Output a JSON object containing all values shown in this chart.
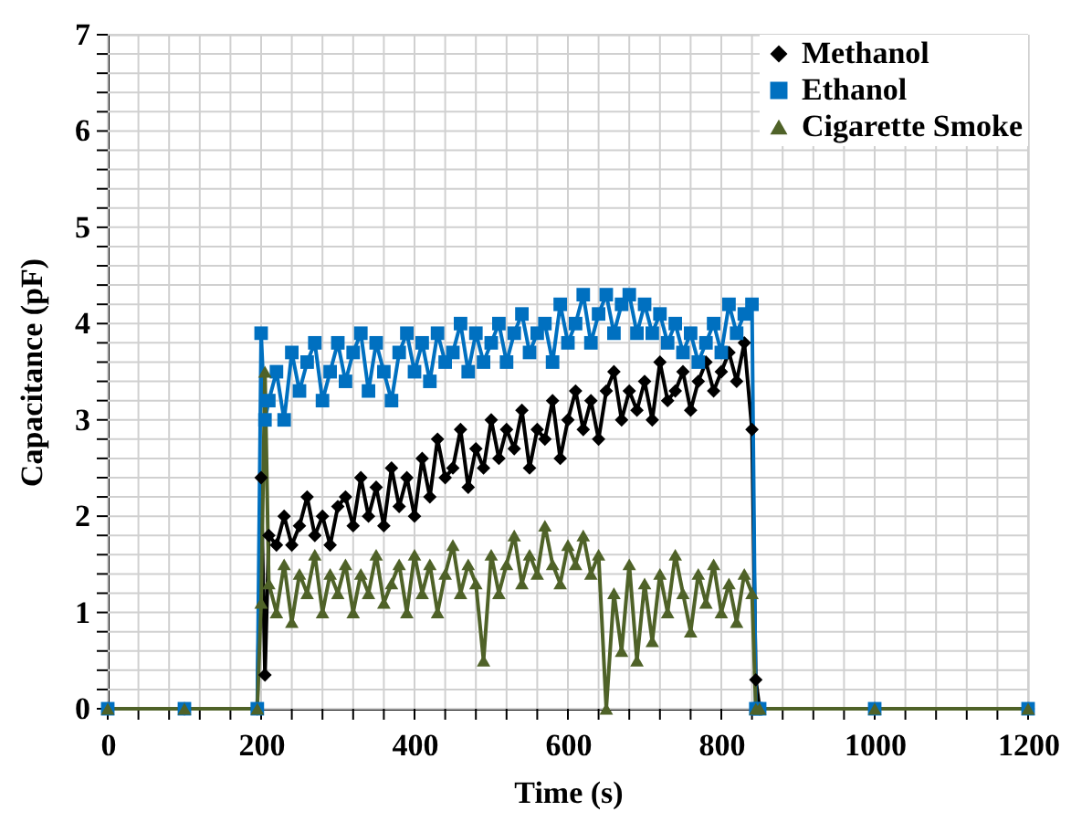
{
  "chart_data": {
    "type": "line",
    "xlabel": "Time (s)",
    "ylabel": "Capacitance (pF)",
    "x": [
      0,
      100,
      195,
      200,
      205,
      210,
      220,
      230,
      240,
      250,
      260,
      270,
      280,
      290,
      300,
      310,
      320,
      330,
      340,
      350,
      360,
      370,
      380,
      390,
      400,
      410,
      420,
      430,
      440,
      450,
      460,
      470,
      480,
      490,
      500,
      510,
      520,
      530,
      540,
      550,
      560,
      570,
      580,
      590,
      600,
      610,
      620,
      630,
      640,
      650,
      660,
      670,
      680,
      690,
      700,
      710,
      720,
      730,
      740,
      750,
      760,
      770,
      780,
      790,
      800,
      810,
      820,
      830,
      840,
      845,
      850,
      1000,
      1200
    ],
    "series": [
      {
        "name": "Methanol",
        "color": "#000000",
        "marker": "diamond",
        "values": [
          0,
          0,
          0,
          2.4,
          0.35,
          1.8,
          1.7,
          2.0,
          1.7,
          1.9,
          2.2,
          1.8,
          2.0,
          1.7,
          2.1,
          2.2,
          1.9,
          2.4,
          2.0,
          2.3,
          1.9,
          2.5,
          2.1,
          2.4,
          2.0,
          2.6,
          2.2,
          2.8,
          2.4,
          2.5,
          2.9,
          2.3,
          2.7,
          2.5,
          3.0,
          2.6,
          2.9,
          2.7,
          3.1,
          2.5,
          2.9,
          2.8,
          3.2,
          2.6,
          3.0,
          3.3,
          2.9,
          3.2,
          2.8,
          3.3,
          3.5,
          3.0,
          3.3,
          3.1,
          3.4,
          3.0,
          3.6,
          3.2,
          3.3,
          3.5,
          3.1,
          3.4,
          3.6,
          3.3,
          3.5,
          3.7,
          3.4,
          3.8,
          2.9,
          0.3,
          0,
          0,
          0
        ]
      },
      {
        "name": "Ethanol",
        "color": "#0070c0",
        "marker": "square",
        "values": [
          0,
          0,
          0,
          3.9,
          3.0,
          3.2,
          3.5,
          3.0,
          3.7,
          3.3,
          3.6,
          3.8,
          3.2,
          3.5,
          3.8,
          3.4,
          3.7,
          3.9,
          3.3,
          3.8,
          3.5,
          3.2,
          3.7,
          3.9,
          3.5,
          3.8,
          3.4,
          3.9,
          3.6,
          3.7,
          4.0,
          3.5,
          3.9,
          3.6,
          3.8,
          4.0,
          3.6,
          3.9,
          4.1,
          3.7,
          3.9,
          4.0,
          3.6,
          4.2,
          3.8,
          4.0,
          4.3,
          3.8,
          4.1,
          4.3,
          3.9,
          4.2,
          4.3,
          3.9,
          4.2,
          3.9,
          4.1,
          3.8,
          4.0,
          3.7,
          3.9,
          3.6,
          3.8,
          4.0,
          3.7,
          4.2,
          3.9,
          4.1,
          4.2,
          0,
          0,
          0,
          0
        ]
      },
      {
        "name": "Cigarette Smoke",
        "color": "#4f6228",
        "marker": "triangle",
        "values": [
          0,
          0,
          0,
          1.1,
          3.5,
          1.3,
          1.0,
          1.5,
          0.9,
          1.4,
          1.2,
          1.6,
          1.0,
          1.4,
          1.2,
          1.5,
          1.0,
          1.4,
          1.2,
          1.6,
          1.1,
          1.3,
          1.5,
          1.0,
          1.6,
          1.2,
          1.5,
          1.0,
          1.4,
          1.7,
          1.2,
          1.5,
          1.3,
          0.5,
          1.6,
          1.2,
          1.5,
          1.8,
          1.3,
          1.6,
          1.4,
          1.9,
          1.5,
          1.3,
          1.7,
          1.5,
          1.8,
          1.4,
          1.6,
          0.0,
          1.2,
          0.6,
          1.5,
          0.5,
          1.3,
          0.7,
          1.4,
          1.0,
          1.6,
          1.2,
          0.8,
          1.4,
          1.1,
          1.5,
          1.0,
          1.3,
          0.9,
          1.4,
          1.2,
          0,
          0,
          0,
          0
        ]
      }
    ],
    "xlim": [
      0,
      1200
    ],
    "xticks": [
      0,
      {
        "value": 40,
        "label": null
      },
      {
        "value": 80,
        "label": null
      },
      {
        "value": 120,
        "label": null
      },
      {
        "value": 160,
        "label": null
      },
      200,
      {
        "value": 240,
        "label": null
      },
      {
        "value": 280,
        "label": null
      },
      {
        "value": 320,
        "label": null
      },
      {
        "value": 360,
        "label": null
      },
      400,
      {
        "value": 440,
        "label": null
      },
      {
        "value": 480,
        "label": null
      },
      {
        "value": 520,
        "label": null
      },
      {
        "value": 560,
        "label": null
      },
      600,
      {
        "value": 640,
        "label": null
      },
      {
        "value": 680,
        "label": null
      },
      {
        "value": 720,
        "label": null
      },
      {
        "value": 760,
        "label": null
      },
      800,
      {
        "value": 840,
        "label": null
      },
      {
        "value": 880,
        "label": null
      },
      {
        "value": 920,
        "label": null
      },
      {
        "value": 960,
        "label": null
      },
      1000,
      {
        "value": 1040,
        "label": null
      },
      {
        "value": 1080,
        "label": null
      },
      {
        "value": 1120,
        "label": null
      },
      {
        "value": 1160,
        "label": null
      },
      1200
    ],
    "ylim": [
      0,
      7
    ],
    "yticks": [
      0,
      {
        "value": 0.2,
        "label": null
      },
      {
        "value": 0.4,
        "label": null
      },
      {
        "value": 0.6,
        "label": null
      },
      {
        "value": 0.8,
        "label": null
      },
      1,
      {
        "value": 1.2,
        "label": null
      },
      {
        "value": 1.4,
        "label": null
      },
      {
        "value": 1.6,
        "label": null
      },
      {
        "value": 1.8,
        "label": null
      },
      2,
      {
        "value": 2.2,
        "label": null
      },
      {
        "value": 2.4,
        "label": null
      },
      {
        "value": 2.6,
        "label": null
      },
      {
        "value": 2.8,
        "label": null
      },
      3,
      {
        "value": 3.2,
        "label": null
      },
      {
        "value": 3.4,
        "label": null
      },
      {
        "value": 3.6,
        "label": null
      },
      {
        "value": 3.8,
        "label": null
      },
      4,
      {
        "value": 4.2,
        "label": null
      },
      {
        "value": 4.4,
        "label": null
      },
      {
        "value": 4.6,
        "label": null
      },
      {
        "value": 4.8,
        "label": null
      },
      5,
      {
        "value": 5.2,
        "label": null
      },
      {
        "value": 5.4,
        "label": null
      },
      {
        "value": 5.6,
        "label": null
      },
      {
        "value": 5.8,
        "label": null
      },
      6,
      {
        "value": 6.2,
        "label": null
      },
      {
        "value": 6.4,
        "label": null
      },
      {
        "value": 6.6,
        "label": null
      },
      {
        "value": 6.8,
        "label": null
      },
      7
    ],
    "grid": true,
    "legend": "top right",
    "line_style": "solid"
  }
}
